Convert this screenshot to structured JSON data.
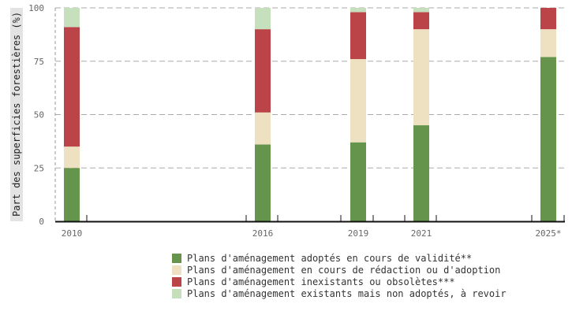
{
  "chart_data": {
    "type": "bar",
    "stacked": true,
    "title": "",
    "xlabel": "",
    "ylabel": "Part des superficies forestières (%)",
    "ylim": [
      0,
      100
    ],
    "yticks": [
      "0",
      "25",
      "50",
      "75",
      "100"
    ],
    "grid": true,
    "legend_position": "bottom",
    "categories": [
      "2010",
      "2016",
      "2019",
      "2021",
      "2025*"
    ],
    "series": [
      {
        "name": "Plans d'aménagement adoptés en cours de validité**",
        "color": "#65944c",
        "values": [
          25,
          36,
          37,
          45,
          77
        ]
      },
      {
        "name": "Plans d'aménagement en cours de rédaction ou d'adoption",
        "color": "#ede1c2",
        "values": [
          10,
          15,
          39,
          45,
          13
        ]
      },
      {
        "name": "Plans d'aménagement inexistants ou obsolètes***",
        "color": "#ba4448",
        "values": [
          56,
          39,
          22,
          8,
          10
        ]
      },
      {
        "name": "Plans d'aménagement existants mais non adoptés, à revoir",
        "color": "#c6e0bd",
        "values": [
          9,
          10,
          2,
          2,
          0
        ]
      }
    ]
  },
  "axis": {
    "ylabel": "Part des superficies forestières (%)"
  },
  "legend": {
    "items": [
      {
        "label": "Plans d'aménagement adoptés en cours de validité**",
        "color": "#65944c"
      },
      {
        "label": "Plans d'aménagement en cours de rédaction ou d'adoption",
        "color": "#ede1c2"
      },
      {
        "label": "Plans d'aménagement inexistants ou obsolètes***",
        "color": "#ba4448"
      },
      {
        "label": "Plans d'aménagement existants mais non adoptés, à revoir",
        "color": "#c6e0bd"
      }
    ]
  }
}
